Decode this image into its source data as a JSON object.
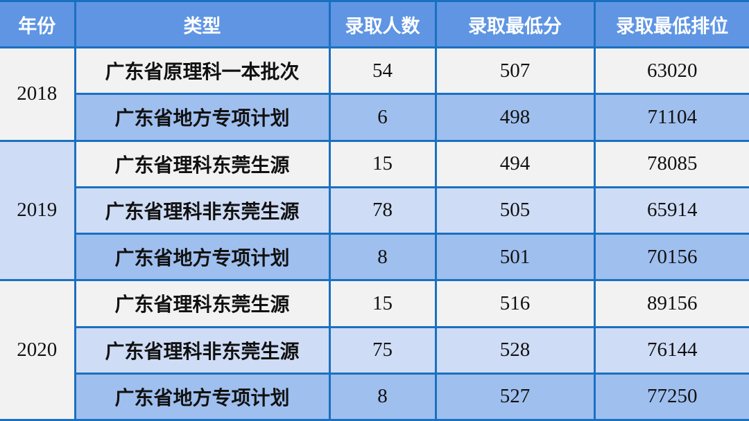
{
  "headers": [
    "年份",
    "类型",
    "录取人数",
    "录取最低分",
    "录取最低排位"
  ],
  "groups": [
    {
      "year": "2018",
      "rows": [
        {
          "type": "广东省原理科一本批次",
          "count": "54",
          "min_score": "507",
          "min_rank": "63020"
        },
        {
          "type": "广东省地方专项计划",
          "count": "6",
          "min_score": "498",
          "min_rank": "71104"
        }
      ]
    },
    {
      "year": "2019",
      "rows": [
        {
          "type": "广东省理科东莞生源",
          "count": "15",
          "min_score": "494",
          "min_rank": "78085"
        },
        {
          "type": "广东省理科非东莞生源",
          "count": "78",
          "min_score": "505",
          "min_rank": "65914"
        },
        {
          "type": "广东省地方专项计划",
          "count": "8",
          "min_score": "501",
          "min_rank": "70156"
        }
      ]
    },
    {
      "year": "2020",
      "rows": [
        {
          "type": "广东省理科东莞生源",
          "count": "15",
          "min_score": "516",
          "min_rank": "89156"
        },
        {
          "type": "广东省理科非东莞生源",
          "count": "75",
          "min_score": "528",
          "min_rank": "76144"
        },
        {
          "type": "广东省地方专项计划",
          "count": "8",
          "min_score": "527",
          "min_rank": "77250"
        }
      ]
    }
  ],
  "colors": {
    "header": "#5f95e3",
    "border": "#1a70c0",
    "grey": "#f2f2f2",
    "light_blue": "#cfdcf5",
    "mid_blue": "#9fbfee"
  }
}
